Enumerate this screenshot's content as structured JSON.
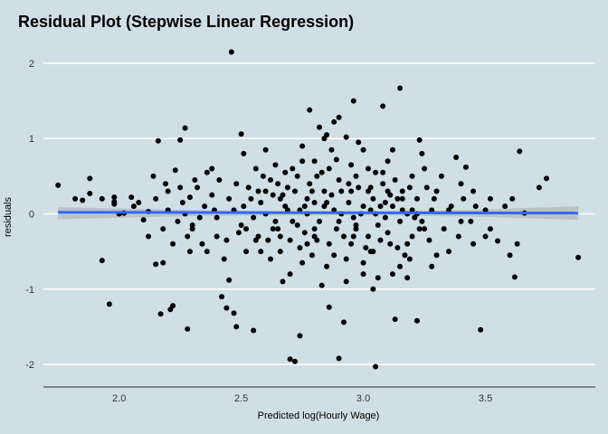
{
  "chart_data": {
    "type": "scatter",
    "title": "Residual Plot (Stepwise Linear Regression)",
    "xlabel": "Predicted log(Hourly Wage)",
    "ylabel": "residuals",
    "xlim": [
      1.69,
      3.95
    ],
    "ylim": [
      -2.3,
      2.3
    ],
    "x_ticks": [
      2.0,
      2.5,
      3.0,
      3.5
    ],
    "x_tick_labels": [
      "2.0",
      "2.5",
      "3.0",
      "3.5"
    ],
    "y_ticks": [
      -2,
      -1,
      0,
      1,
      2
    ],
    "y_tick_labels": [
      "-2",
      "-1",
      "0",
      "1",
      "2"
    ],
    "grid": true,
    "colors": {
      "background": "#cfdfe5",
      "grid": "#ffffff",
      "points": "#000000",
      "fit_line": "#3366ff",
      "ribbon": "#a9a9a9"
    },
    "fit_line": {
      "x": [
        1.75,
        3.88
      ],
      "y": [
        0.02,
        0.01
      ]
    },
    "confidence_band": {
      "x": [
        1.75,
        2.3,
        2.7,
        3.1,
        3.5,
        3.88
      ],
      "lower": [
        -0.07,
        -0.03,
        -0.02,
        -0.02,
        -0.04,
        -0.08
      ],
      "upper": [
        0.09,
        0.05,
        0.03,
        0.03,
        0.06,
        0.1
      ]
    },
    "points": [
      [
        1.75,
        0.38
      ],
      [
        1.82,
        0.2
      ],
      [
        1.85,
        0.18
      ],
      [
        1.88,
        0.27
      ],
      [
        1.88,
        0.47
      ],
      [
        1.93,
        -0.62
      ],
      [
        1.93,
        0.2
      ],
      [
        1.96,
        -1.2
      ],
      [
        1.98,
        0.22
      ],
      [
        1.98,
        0.13
      ],
      [
        1.98,
        0.16
      ],
      [
        2.0,
        0.0
      ],
      [
        2.02,
        0.01
      ],
      [
        2.05,
        0.22
      ],
      [
        2.06,
        0.1
      ],
      [
        2.08,
        0.15
      ],
      [
        2.1,
        -0.08
      ],
      [
        2.12,
        0.03
      ],
      [
        2.14,
        0.5
      ],
      [
        2.15,
        -0.67
      ],
      [
        2.16,
        0.97
      ],
      [
        2.17,
        -1.33
      ],
      [
        2.18,
        -0.65
      ],
      [
        2.19,
        0.4
      ],
      [
        2.2,
        0.3
      ],
      [
        2.21,
        -1.27
      ],
      [
        2.22,
        -1.22
      ],
      [
        2.23,
        0.58
      ],
      [
        2.25,
        0.98
      ],
      [
        2.27,
        1.14
      ],
      [
        2.28,
        -1.53
      ],
      [
        2.29,
        0.22
      ],
      [
        2.3,
        -0.2
      ],
      [
        2.32,
        0.35
      ],
      [
        2.34,
        -0.4
      ],
      [
        2.36,
        0.55
      ],
      [
        2.38,
        0.6
      ],
      [
        2.4,
        -0.3
      ],
      [
        2.42,
        -1.1
      ],
      [
        2.44,
        -1.25
      ],
      [
        2.45,
        -0.88
      ],
      [
        2.46,
        2.15
      ],
      [
        2.47,
        -1.32
      ],
      [
        2.48,
        -1.5
      ],
      [
        2.5,
        1.06
      ],
      [
        2.51,
        0.8
      ],
      [
        2.52,
        -0.2
      ],
      [
        2.55,
        -1.55
      ],
      [
        2.56,
        0.6
      ],
      [
        2.58,
        -0.5
      ],
      [
        2.6,
        0.3
      ],
      [
        2.62,
        -0.6
      ],
      [
        2.64,
        0.65
      ],
      [
        2.66,
        0.2
      ],
      [
        2.67,
        -0.9
      ],
      [
        2.68,
        0.55
      ],
      [
        2.7,
        -1.93
      ],
      [
        2.72,
        -1.96
      ],
      [
        2.74,
        -1.62
      ],
      [
        2.75,
        0.7
      ],
      [
        2.76,
        0.1
      ],
      [
        2.77,
        -0.4
      ],
      [
        2.78,
        1.38
      ],
      [
        2.8,
        -0.2
      ],
      [
        2.81,
        0.5
      ],
      [
        2.82,
        1.15
      ],
      [
        2.84,
        1.0
      ],
      [
        2.85,
        1.05
      ],
      [
        2.86,
        -1.24
      ],
      [
        2.88,
        1.22
      ],
      [
        2.89,
        0.72
      ],
      [
        2.9,
        1.28
      ],
      [
        2.9,
        -1.92
      ],
      [
        2.92,
        -1.44
      ],
      [
        2.93,
        1.02
      ],
      [
        2.95,
        0.3
      ],
      [
        2.96,
        1.5
      ],
      [
        2.97,
        -0.2
      ],
      [
        2.98,
        0.95
      ],
      [
        3.0,
        -0.8
      ],
      [
        3.02,
        0.6
      ],
      [
        3.03,
        -0.5
      ],
      [
        3.04,
        -1.0
      ],
      [
        3.05,
        -2.03
      ],
      [
        3.07,
        0.1
      ],
      [
        3.08,
        1.43
      ],
      [
        3.1,
        0.3
      ],
      [
        3.12,
        -0.8
      ],
      [
        3.13,
        -1.4
      ],
      [
        3.15,
        1.67
      ],
      [
        3.16,
        0.2
      ],
      [
        3.18,
        -0.4
      ],
      [
        3.2,
        0.5
      ],
      [
        3.22,
        -1.42
      ],
      [
        3.23,
        0.98
      ],
      [
        3.25,
        -0.2
      ],
      [
        3.28,
        -0.7
      ],
      [
        3.3,
        0.3
      ],
      [
        3.32,
        0.5
      ],
      [
        3.35,
        -0.5
      ],
      [
        3.38,
        0.75
      ],
      [
        3.4,
        -0.1
      ],
      [
        3.42,
        0.62
      ],
      [
        3.45,
        0.3
      ],
      [
        3.48,
        -1.54
      ],
      [
        3.5,
        -0.3
      ],
      [
        3.52,
        0.2
      ],
      [
        3.55,
        -0.36
      ],
      [
        3.6,
        -0.55
      ],
      [
        3.61,
        0.2
      ],
      [
        3.62,
        -0.84
      ],
      [
        3.64,
        0.83
      ],
      [
        3.66,
        0.01
      ],
      [
        3.72,
        0.35
      ],
      [
        3.75,
        0.47
      ],
      [
        3.88,
        -0.58
      ],
      [
        2.35,
        0.1
      ],
      [
        2.4,
        -0.05
      ],
      [
        2.45,
        0.2
      ],
      [
        2.5,
        -0.15
      ],
      [
        2.53,
        0.35
      ],
      [
        2.57,
        -0.3
      ],
      [
        2.6,
        0.0
      ],
      [
        2.63,
        0.25
      ],
      [
        2.65,
        -0.2
      ],
      [
        2.68,
        0.1
      ],
      [
        2.7,
        -0.35
      ],
      [
        2.72,
        0.3
      ],
      [
        2.74,
        0.05
      ],
      [
        2.76,
        -0.25
      ],
      [
        2.78,
        0.4
      ],
      [
        2.8,
        0.15
      ],
      [
        2.82,
        -0.1
      ],
      [
        2.84,
        0.3
      ],
      [
        2.86,
        -0.4
      ],
      [
        2.88,
        0.05
      ],
      [
        2.9,
        0.45
      ],
      [
        2.92,
        -0.3
      ],
      [
        2.94,
        0.15
      ],
      [
        2.96,
        -0.05
      ],
      [
        2.98,
        0.35
      ],
      [
        3.0,
        0.1
      ],
      [
        3.02,
        -0.3
      ],
      [
        3.04,
        0.2
      ],
      [
        3.06,
        -0.15
      ],
      [
        3.08,
        0.4
      ],
      [
        3.1,
        -0.25
      ],
      [
        3.12,
        0.1
      ],
      [
        3.14,
        -0.45
      ],
      [
        3.16,
        0.3
      ],
      [
        3.18,
        0.0
      ],
      [
        3.2,
        -0.3
      ],
      [
        3.22,
        0.2
      ],
      [
        3.24,
        -0.1
      ],
      [
        3.26,
        0.35
      ],
      [
        3.28,
        0.05
      ],
      [
        2.55,
        -0.05
      ],
      [
        2.62,
        0.45
      ],
      [
        2.66,
        -0.5
      ],
      [
        2.71,
        0.6
      ],
      [
        2.79,
        -0.55
      ],
      [
        2.83,
        0.55
      ],
      [
        2.87,
        0.25
      ],
      [
        2.93,
        -0.6
      ],
      [
        2.97,
        0.5
      ],
      [
        3.01,
        -0.45
      ],
      [
        3.05,
        0.55
      ],
      [
        3.09,
        -0.05
      ],
      [
        3.13,
        0.45
      ],
      [
        3.17,
        -0.55
      ],
      [
        3.21,
        -0.05
      ],
      [
        3.27,
        -0.35
      ],
      [
        2.3,
        -0.15
      ],
      [
        2.38,
        0.25
      ],
      [
        2.44,
        -0.35
      ],
      [
        2.48,
        0.4
      ],
      [
        2.52,
        -0.5
      ],
      [
        2.58,
        0.15
      ],
      [
        2.61,
        -0.35
      ],
      [
        2.69,
        0.35
      ],
      [
        2.73,
        -0.15
      ],
      [
        2.77,
        0.2
      ],
      [
        2.81,
        -0.35
      ],
      [
        2.85,
        0.15
      ],
      [
        2.89,
        -0.2
      ],
      [
        2.91,
        0.3
      ],
      [
        2.95,
        -0.4
      ],
      [
        2.99,
        0.0
      ],
      [
        3.03,
        0.35
      ],
      [
        3.07,
        -0.35
      ],
      [
        3.11,
        0.25
      ],
      [
        3.15,
        -0.1
      ],
      [
        3.19,
        0.35
      ],
      [
        3.23,
        -0.2
      ],
      [
        3.29,
        0.2
      ],
      [
        3.33,
        -0.2
      ],
      [
        3.36,
        0.1
      ],
      [
        3.39,
        -0.3
      ],
      [
        3.41,
        0.2
      ],
      [
        3.44,
        -0.1
      ],
      [
        3.46,
        0.1
      ],
      [
        3.52,
        -0.2
      ],
      [
        3.58,
        0.1
      ],
      [
        3.63,
        -0.4
      ],
      [
        2.24,
        -0.1
      ],
      [
        2.26,
        0.15
      ],
      [
        2.28,
        -0.3
      ],
      [
        2.31,
        0.45
      ],
      [
        2.33,
        -0.05
      ],
      [
        2.36,
        -0.5
      ],
      [
        2.39,
        0.05
      ],
      [
        2.41,
        0.45
      ],
      [
        2.43,
        -0.6
      ],
      [
        2.47,
        0.05
      ],
      [
        2.49,
        -0.25
      ],
      [
        2.54,
        0.2
      ],
      [
        2.56,
        -0.35
      ],
      [
        2.59,
        0.5
      ],
      [
        2.64,
        -0.1
      ],
      [
        2.67,
        0.25
      ],
      [
        2.75,
        -0.65
      ],
      [
        2.8,
        0.7
      ],
      [
        2.85,
        -0.7
      ],
      [
        2.9,
        -0.1
      ],
      [
        2.95,
        0.65
      ],
      [
        3.0,
        -0.65
      ],
      [
        3.05,
        0.0
      ],
      [
        3.1,
        0.7
      ],
      [
        3.15,
        -0.7
      ],
      [
        3.2,
        0.05
      ],
      [
        3.25,
        0.6
      ],
      [
        3.3,
        -0.55
      ],
      [
        3.35,
        0.05
      ],
      [
        3.4,
        0.4
      ],
      [
        3.45,
        -0.4
      ],
      [
        3.5,
        0.05
      ],
      [
        2.12,
        -0.3
      ],
      [
        2.15,
        0.2
      ],
      [
        2.18,
        -0.2
      ],
      [
        2.2,
        0.05
      ],
      [
        2.22,
        -0.4
      ],
      [
        2.25,
        0.35
      ],
      [
        2.27,
        0.0
      ],
      [
        2.29,
        -0.5
      ],
      [
        2.6,
        0.85
      ],
      [
        2.7,
        -0.8
      ],
      [
        2.75,
        0.9
      ],
      [
        2.83,
        -0.95
      ],
      [
        2.87,
        0.85
      ],
      [
        2.93,
        -0.9
      ],
      [
        3.0,
        0.85
      ],
      [
        3.06,
        -0.85
      ],
      [
        3.12,
        0.85
      ],
      [
        3.18,
        -0.85
      ],
      [
        3.24,
        0.8
      ],
      [
        2.65,
        0.4
      ],
      [
        2.73,
        0.5
      ],
      [
        2.79,
        0.3
      ],
      [
        2.86,
        0.6
      ],
      [
        2.94,
        0.4
      ],
      [
        3.02,
        0.3
      ],
      [
        3.08,
        0.55
      ],
      [
        3.14,
        0.2
      ],
      [
        2.66,
        -0.3
      ],
      [
        2.74,
        -0.45
      ],
      [
        2.8,
        -0.3
      ],
      [
        2.88,
        -0.55
      ],
      [
        2.96,
        -0.3
      ],
      [
        3.04,
        -0.5
      ],
      [
        3.11,
        -0.4
      ],
      [
        3.19,
        -0.6
      ],
      [
        2.51,
        0.1
      ],
      [
        2.57,
        0.3
      ],
      [
        2.63,
        -0.2
      ],
      [
        2.69,
        0.05
      ],
      [
        2.71,
        -0.1
      ],
      [
        2.77,
        0.0
      ],
      [
        2.84,
        0.1
      ],
      [
        2.91,
        0.0
      ],
      [
        2.97,
        -0.15
      ],
      [
        3.03,
        0.05
      ],
      [
        3.09,
        0.15
      ],
      [
        3.16,
        0.05
      ],
      [
        3.22,
        0.0
      ]
    ]
  }
}
